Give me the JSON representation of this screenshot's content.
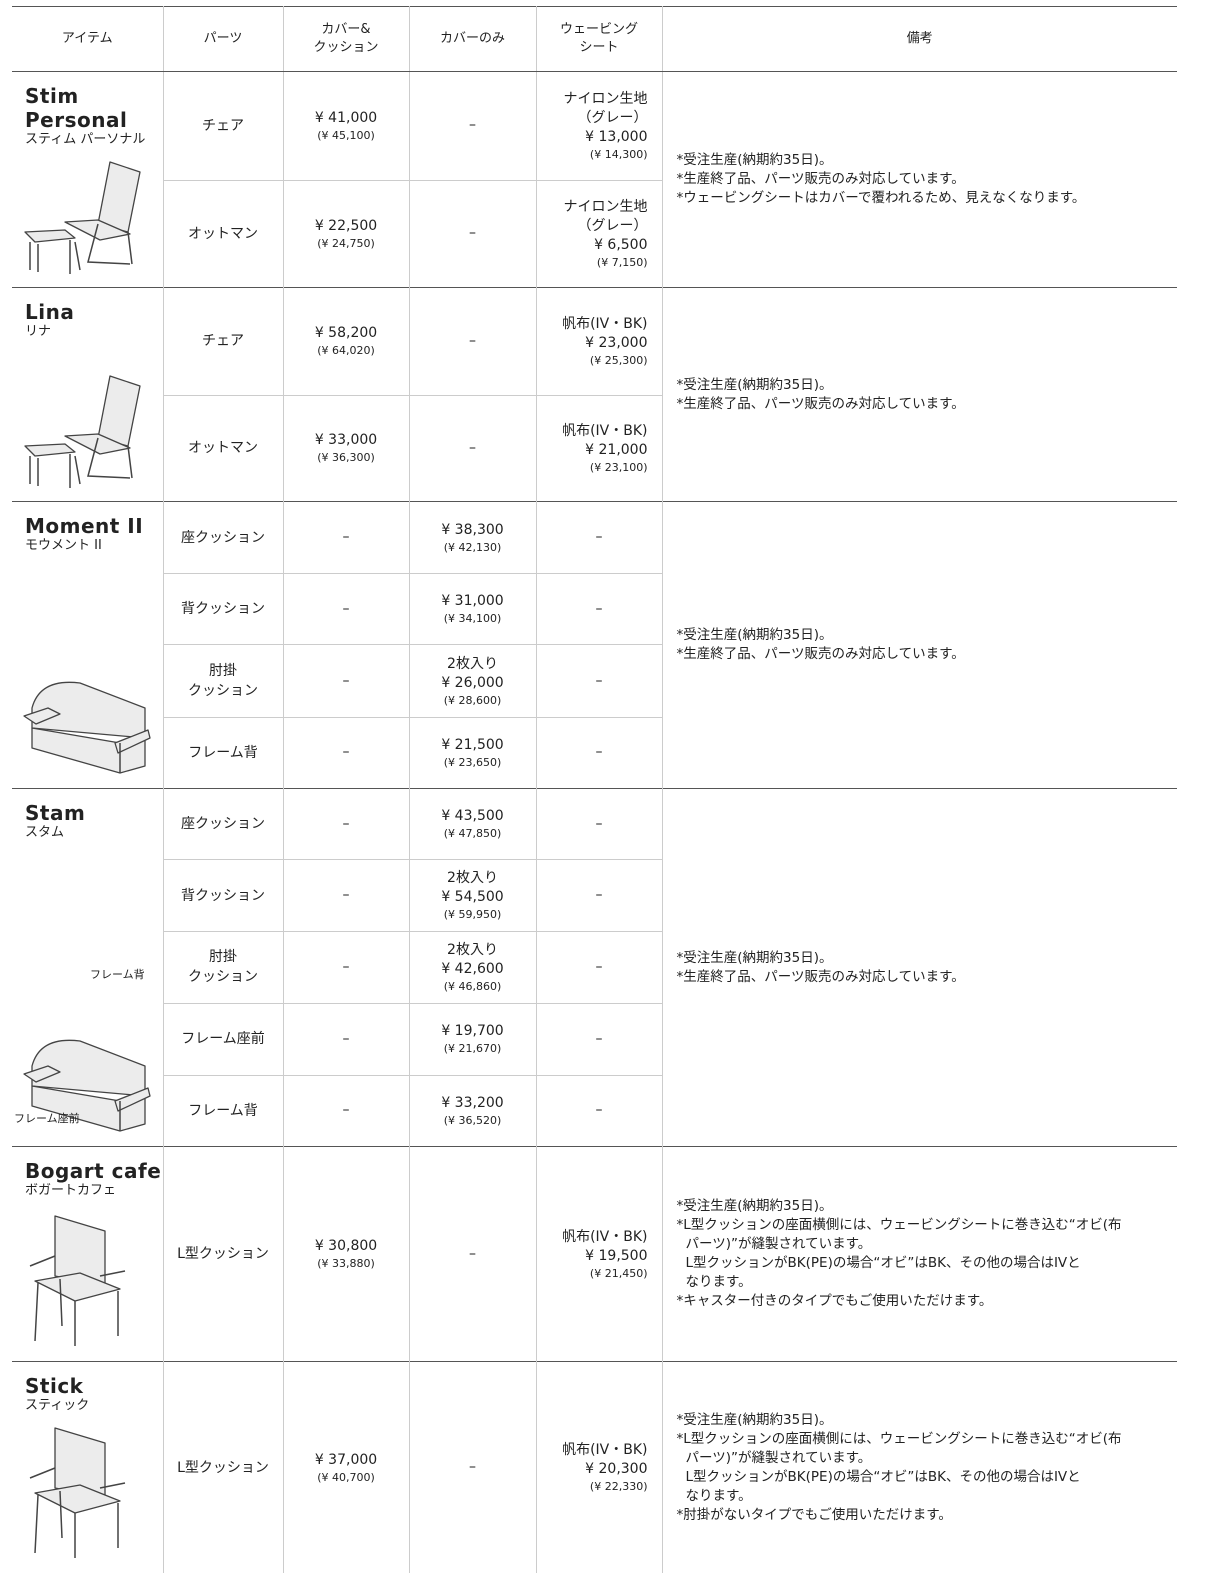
{
  "header": [
    "アイテム",
    "パーツ",
    "カバー&\nクッション",
    "カバーのみ",
    "ウェービング\nシート",
    "備考"
  ],
  "groups": [
    {
      "name": "Stim Personal",
      "name_ja": "スティム パーソナル",
      "rows": [
        {
          "part": "チェア",
          "cover_cushion": [
            "¥ 41,000",
            "(¥ 45,100)"
          ],
          "cover_only": [
            "–"
          ],
          "webbing": [
            "ナイロン生地",
            "（グレー）",
            "¥ 13,000",
            "(¥ 14,300)"
          ]
        },
        {
          "part": "オットマン",
          "cover_cushion": [
            "¥ 22,500",
            "(¥ 24,750)"
          ],
          "cover_only": [
            "–"
          ],
          "webbing": [
            "ナイロン生地",
            "（グレー）",
            "¥ 6,500",
            "(¥ 7,150)"
          ]
        }
      ],
      "notes": [
        "*受注生産(納期約35日)。",
        "*生産終了品、パーツ販売のみ対応しています。",
        "*ウェービングシートはカバーで覆われるため、見えなくなります。"
      ]
    },
    {
      "name": "Lina",
      "name_ja": "リナ",
      "rows": [
        {
          "part": "チェア",
          "cover_cushion": [
            "¥ 58,200",
            "(¥ 64,020)"
          ],
          "cover_only": [
            "–"
          ],
          "webbing": [
            "帆布(IV・BK)",
            "¥ 23,000",
            "(¥ 25,300)"
          ]
        },
        {
          "part": "オットマン",
          "cover_cushion": [
            "¥ 33,000",
            "(¥ 36,300)"
          ],
          "cover_only": [
            "–"
          ],
          "webbing": [
            "帆布(IV・BK)",
            "¥ 21,000",
            "(¥ 23,100)"
          ]
        }
      ],
      "notes": [
        "*受注生産(納期約35日)。",
        "*生産終了品、パーツ販売のみ対応しています。"
      ]
    },
    {
      "name": "Moment II",
      "name_ja": "モウメント II",
      "rows": [
        {
          "part": "座クッション",
          "cover_cushion": [
            "–"
          ],
          "cover_only": [
            "¥ 38,300",
            "(¥ 42,130)"
          ],
          "webbing": [
            "–"
          ]
        },
        {
          "part": "背クッション",
          "cover_cushion": [
            "–"
          ],
          "cover_only": [
            "¥ 31,000",
            "(¥ 34,100)"
          ],
          "webbing": [
            "–"
          ]
        },
        {
          "part": "肘掛\nクッション",
          "cover_cushion": [
            "–"
          ],
          "cover_only": [
            "2枚入り",
            "¥ 26,000",
            "(¥ 28,600)"
          ],
          "webbing": [
            "–"
          ]
        },
        {
          "part": "フレーム背",
          "cover_cushion": [
            "–"
          ],
          "cover_only": [
            "¥ 21,500",
            "(¥ 23,650)"
          ],
          "webbing": [
            "–"
          ]
        }
      ],
      "notes": [
        "*受注生産(納期約35日)。",
        "*生産終了品、パーツ販売のみ対応しています。"
      ]
    },
    {
      "name": "Stam",
      "name_ja": "スタム",
      "illustration_labels": [
        "フレーム背",
        "フレーム座前"
      ],
      "rows": [
        {
          "part": "座クッション",
          "cover_cushion": [
            "–"
          ],
          "cover_only": [
            "¥ 43,500",
            "(¥ 47,850)"
          ],
          "webbing": [
            "–"
          ]
        },
        {
          "part": "背クッション",
          "cover_cushion": [
            "–"
          ],
          "cover_only": [
            "2枚入り",
            "¥ 54,500",
            "(¥ 59,950)"
          ],
          "webbing": [
            "–"
          ]
        },
        {
          "part": "肘掛\nクッション",
          "cover_cushion": [
            "–"
          ],
          "cover_only": [
            "2枚入り",
            "¥ 42,600",
            "(¥ 46,860)"
          ],
          "webbing": [
            "–"
          ]
        },
        {
          "part": "フレーム座前",
          "cover_cushion": [
            "–"
          ],
          "cover_only": [
            "¥ 19,700",
            "(¥ 21,670)"
          ],
          "webbing": [
            "–"
          ]
        },
        {
          "part": "フレーム背",
          "cover_cushion": [
            "–"
          ],
          "cover_only": [
            "¥ 33,200",
            "(¥ 36,520)"
          ],
          "webbing": [
            "–"
          ]
        }
      ],
      "notes": [
        "*受注生産(納期約35日)。",
        "*生産終了品、パーツ販売のみ対応しています。"
      ]
    },
    {
      "name": "Bogart cafe",
      "name_ja": "ボガートカフェ",
      "rows": [
        {
          "part": "L型クッション",
          "cover_cushion": [
            "¥ 30,800",
            "(¥ 33,880)"
          ],
          "cover_only": [
            "–"
          ],
          "webbing": [
            "帆布(IV・BK)",
            "¥ 19,500",
            "(¥ 21,450)"
          ]
        }
      ],
      "notes": [
        "*受注生産(納期約35日)。",
        "*L型クッションの座面横側には、ウェービングシートに巻き込む“オビ(布",
        "パーツ)”が縫製されています。",
        "L型クッションがBK(PE)の場合“オビ”はBK、その他の場合はIVと",
        "なります。",
        "*キャスター付きのタイプでもご使用いただけます。"
      ]
    },
    {
      "name": "Stick",
      "name_ja": "スティック",
      "rows": [
        {
          "part": "L型クッション",
          "cover_cushion": [
            "¥ 37,000",
            "(¥ 40,700)"
          ],
          "cover_only": [
            "–"
          ],
          "webbing": [
            "帆布(IV・BK)",
            "¥ 20,300",
            "(¥ 22,330)"
          ]
        }
      ],
      "notes": [
        "*受注生産(納期約35日)。",
        "*L型クッションの座面横側には、ウェービングシートに巻き込む“オビ(布",
        "パーツ)”が縫製されています。",
        "L型クッションがBK(PE)の場合“オビ”はBK、その他の場合はIVと",
        "なります。",
        "*肘掛がないタイプでもご使用いただけます。"
      ]
    }
  ]
}
